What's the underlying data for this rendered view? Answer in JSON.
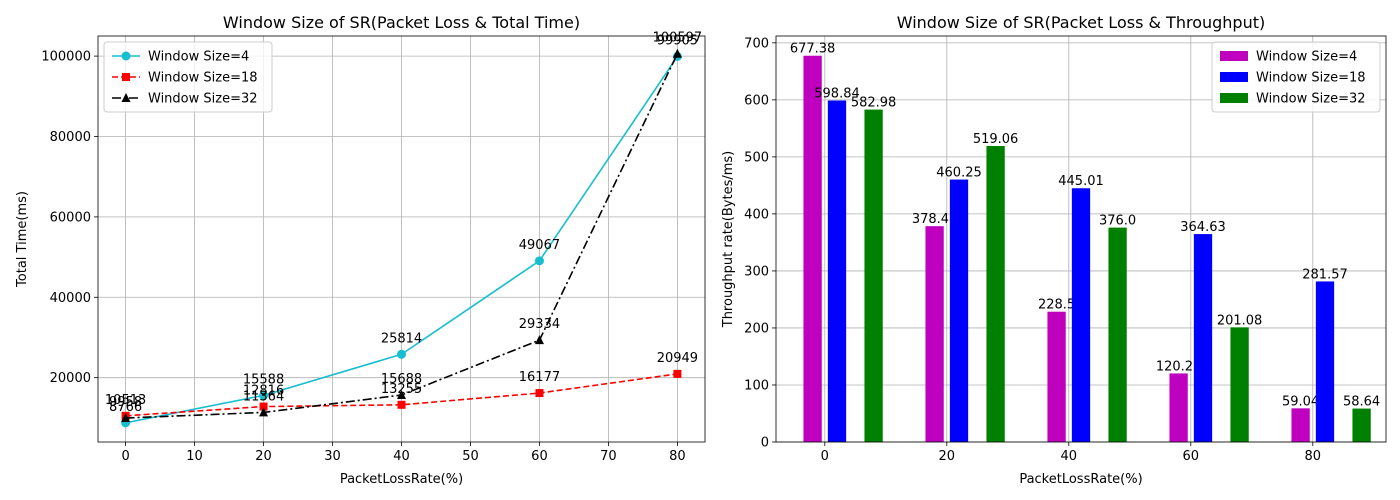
{
  "chart_data": [
    {
      "type": "line",
      "title": "Window Size of SR(Packet Loss & Total Time)",
      "xlabel": "PacketLossRate(%)",
      "ylabel": "Total Time(ms)",
      "xlim": [
        -4,
        84
      ],
      "ylim": [
        4000,
        105000
      ],
      "xticks": [
        0,
        10,
        20,
        30,
        40,
        50,
        60,
        70,
        80
      ],
      "yticks": [
        20000,
        40000,
        60000,
        80000,
        100000
      ],
      "grid": true,
      "legend": "upper-left",
      "x": [
        0,
        20,
        40,
        60,
        80
      ],
      "series": [
        {
          "name": "Window Size=4",
          "color": "#17becf",
          "marker": "circle",
          "dash": "solid",
          "values": [
            8766,
            15588,
            25814,
            49067,
            99905
          ],
          "labels": [
            "8766",
            "15588",
            "25814",
            "49067",
            "99905"
          ]
        },
        {
          "name": "Window Size=18",
          "color": "#ff0000",
          "marker": "square",
          "dash": "dashed",
          "values": [
            10513,
            12816,
            13255,
            16177,
            20949
          ],
          "labels": [
            "10513",
            "12816",
            "13255",
            "16177",
            "20949"
          ]
        },
        {
          "name": "Window Size=32",
          "color": "#000000",
          "marker": "triangle",
          "dash": "dashdot",
          "values": [
            9958,
            11364,
            15688,
            29334,
            100597
          ],
          "labels": [
            "9958",
            "11364",
            "15688",
            "29334",
            "100597"
          ]
        }
      ]
    },
    {
      "type": "bar",
      "title": "Window Size of SR(Packet Loss & Throughput)",
      "xlabel": "PacketLossRate(%)",
      "ylabel": "Throughput rate(Bytes/ms)",
      "xlim": [
        -8,
        92
      ],
      "ylim": [
        0,
        712
      ],
      "xticks": [
        0,
        20,
        40,
        60,
        80
      ],
      "yticks": [
        0,
        100,
        200,
        300,
        400,
        500,
        600,
        700
      ],
      "grid": true,
      "legend": "upper-right",
      "x": [
        0,
        20,
        40,
        60,
        80
      ],
      "series": [
        {
          "name": "Window Size=4",
          "color": "#bf00bf",
          "offset": -2,
          "values": [
            677.38,
            378.48,
            228.5,
            120.22,
            59.04
          ],
          "labels": [
            "677.38",
            "378.48",
            "228.5",
            "120.22",
            "59.04"
          ]
        },
        {
          "name": "Window Size=18",
          "color": "#0000ff",
          "offset": 2,
          "values": [
            598.84,
            460.25,
            445.01,
            364.63,
            281.57
          ],
          "labels": [
            "598.84",
            "460.25",
            "445.01",
            "364.63",
            "281.57"
          ]
        },
        {
          "name": "Window Size=32",
          "color": "#008000",
          "offset": 8,
          "values": [
            582.98,
            519.06,
            376.0,
            201.08,
            58.64
          ],
          "labels": [
            "582.98",
            "519.06",
            "376.0",
            "201.08",
            "58.64"
          ]
        }
      ]
    }
  ]
}
